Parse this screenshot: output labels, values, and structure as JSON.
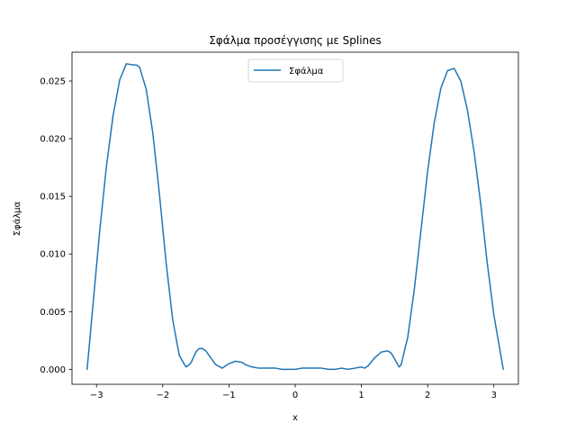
{
  "chart_data": {
    "type": "line",
    "title": "Σφάλμα προσέγγισης με Splines",
    "xlabel": "x",
    "ylabel": "Σφάλμα",
    "xlim": [
      -3.37,
      3.37
    ],
    "ylim": [
      -0.0013,
      0.0275
    ],
    "xticks": [
      -3,
      -2,
      -1,
      0,
      1,
      2,
      3
    ],
    "xtick_labels": [
      "−3",
      "−2",
      "−1",
      "0",
      "1",
      "2",
      "3"
    ],
    "yticks": [
      0.0,
      0.005,
      0.01,
      0.015,
      0.02,
      0.025
    ],
    "ytick_labels": [
      "0.000",
      "0.005",
      "0.010",
      "0.015",
      "0.020",
      "0.025"
    ],
    "grid": false,
    "legend": {
      "position": "top-center",
      "entries": [
        "Σφάλμα"
      ]
    },
    "color": "#1f77b4",
    "series": [
      {
        "name": "Σφάλμα",
        "x": [
          -3.1416,
          -3.05,
          -2.95,
          -2.85,
          -2.75,
          -2.65,
          -2.55,
          -2.45,
          -2.4,
          -2.35,
          -2.25,
          -2.15,
          -2.05,
          -1.95,
          -1.85,
          -1.75,
          -1.65,
          -1.6,
          -1.57,
          -1.5,
          -1.45,
          -1.4,
          -1.35,
          -1.3,
          -1.2,
          -1.1,
          -1.05,
          -1.0,
          -0.9,
          -0.8,
          -0.75,
          -0.65,
          -0.55,
          -0.5,
          -0.4,
          -0.3,
          -0.2,
          -0.1,
          0.0,
          0.1,
          0.2,
          0.3,
          0.4,
          0.5,
          0.6,
          0.7,
          0.8,
          0.9,
          1.0,
          1.05,
          1.1,
          1.2,
          1.3,
          1.4,
          1.45,
          1.5,
          1.57,
          1.6,
          1.7,
          1.8,
          1.9,
          2.0,
          2.1,
          2.2,
          2.3,
          2.4,
          2.5,
          2.6,
          2.7,
          2.8,
          2.9,
          3.0,
          3.1416
        ],
        "values": [
          0.0,
          0.0058,
          0.0121,
          0.0176,
          0.022,
          0.0251,
          0.0265,
          0.0264,
          0.0264,
          0.0262,
          0.0243,
          0.0205,
          0.0152,
          0.0093,
          0.0043,
          0.0012,
          0.0002,
          0.0004,
          0.0006,
          0.0015,
          0.0018,
          0.0018,
          0.0016,
          0.0012,
          0.0004,
          0.0001,
          0.0003,
          0.0005,
          0.0007,
          0.0006,
          0.0004,
          0.0002,
          0.0001,
          0.0001,
          0.0001,
          0.0001,
          0.0,
          0.0,
          0.0,
          0.0001,
          0.0001,
          0.0001,
          0.0001,
          0.0,
          0.0,
          0.0001,
          0.0,
          0.0001,
          0.0002,
          0.0001,
          0.0003,
          0.001,
          0.0015,
          0.0016,
          0.0014,
          0.0009,
          0.0002,
          0.0004,
          0.0028,
          0.007,
          0.0121,
          0.0172,
          0.0214,
          0.0244,
          0.0259,
          0.0261,
          0.025,
          0.0225,
          0.0189,
          0.0144,
          0.0092,
          0.0047,
          0.0
        ]
      }
    ]
  }
}
